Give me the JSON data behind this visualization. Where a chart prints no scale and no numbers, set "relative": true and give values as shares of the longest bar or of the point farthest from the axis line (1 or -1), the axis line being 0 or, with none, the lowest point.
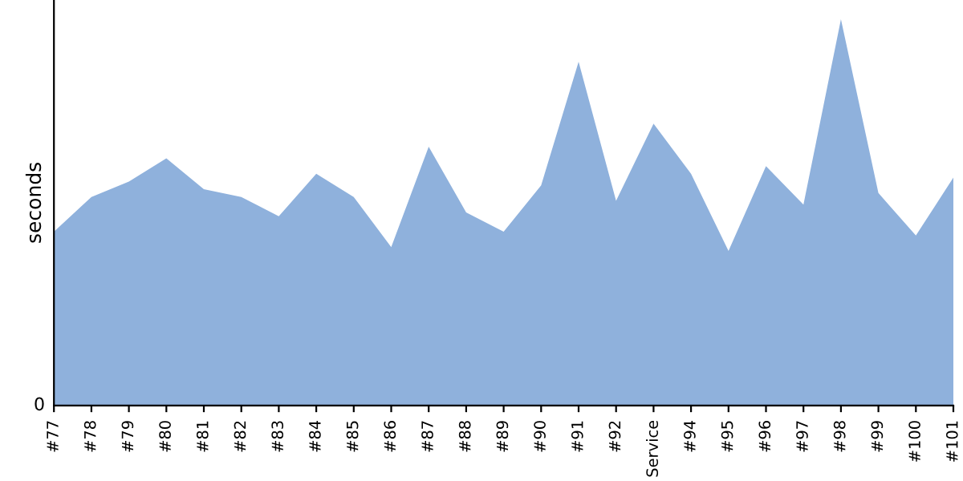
{
  "chart_data": {
    "type": "area",
    "relative": true,
    "ylabel": "seconds",
    "annotations": [
      "0"
    ],
    "categories": [
      "#77",
      "#78",
      "#79",
      "#80",
      "#81",
      "#82",
      "#83",
      "#84",
      "#85",
      "#86",
      "#87",
      "#88",
      "#89",
      "#90",
      "#91",
      "#92",
      "Service",
      "#94",
      "#95",
      "#96",
      "#97",
      "#98",
      "#99",
      "#100",
      "#101"
    ],
    "series": [
      {
        "color": "#8fb1dc",
        "values": [
          0.45,
          0.54,
          0.58,
          0.64,
          0.56,
          0.54,
          0.49,
          0.6,
          0.54,
          0.41,
          0.67,
          0.5,
          0.45,
          0.57,
          0.89,
          0.53,
          0.73,
          0.6,
          0.4,
          0.62,
          0.52,
          1,
          0.55,
          0.44,
          0.59
        ]
      }
    ],
    "grid": false,
    "legend": false
  }
}
